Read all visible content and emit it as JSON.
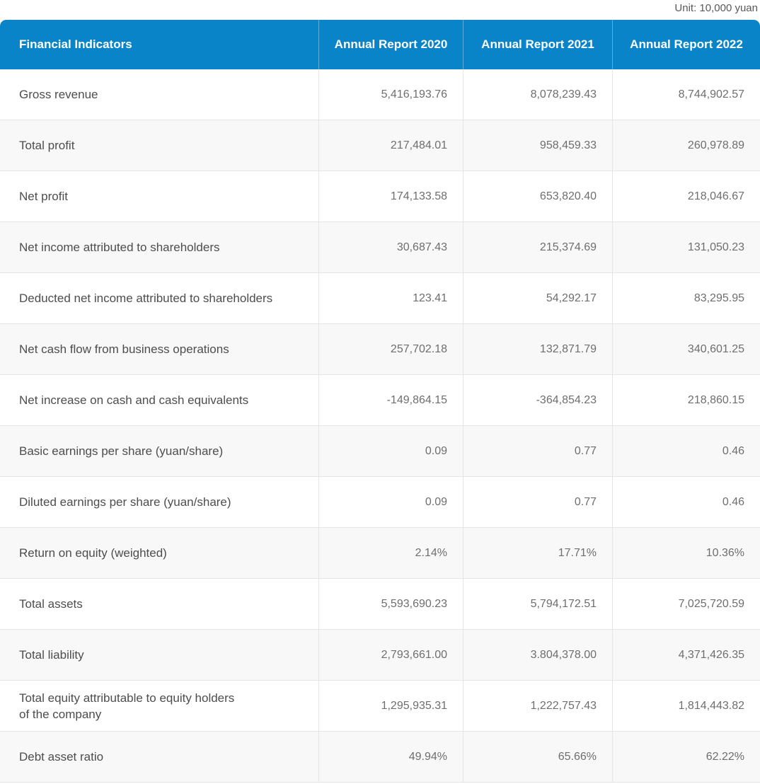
{
  "unit_label": "Unit: 10,000 yuan",
  "theme": {
    "header_bg": "#0984c9",
    "header_text": "#ffffff",
    "row_alt_bg": "#f8f8f8",
    "border": "#e5e5e5",
    "label_text": "#4d4d4d",
    "value_text": "#6e6e6e"
  },
  "chart_data": {
    "type": "table",
    "title": "Financial Indicators",
    "unit": "Unit: 10,000 yuan",
    "columns": [
      "Financial Indicators",
      "Annual Report 2020",
      "Annual Report 2021",
      "Annual Report 2022"
    ],
    "rows": [
      {
        "label": "Gross revenue",
        "values": [
          "5,416,193.76",
          "8,078,239.43",
          "8,744,902.57"
        ]
      },
      {
        "label": "Total profit",
        "values": [
          "217,484.01",
          "958,459.33",
          "260,978.89"
        ]
      },
      {
        "label": "Net profit",
        "values": [
          "174,133.58",
          "653,820.40",
          "218,046.67"
        ]
      },
      {
        "label": "Net income attributed to shareholders",
        "values": [
          "30,687.43",
          "215,374.69",
          "131,050.23"
        ]
      },
      {
        "label": "Deducted net income attributed to shareholders",
        "values": [
          "123.41",
          "54,292.17",
          "83,295.95"
        ]
      },
      {
        "label": "Net cash flow from business operations",
        "values": [
          "257,702.18",
          "132,871.79",
          "340,601.25"
        ]
      },
      {
        "label": "Net increase on cash and cash equivalents",
        "values": [
          "-149,864.15",
          "-364,854.23",
          "218,860.15"
        ]
      },
      {
        "label": "Basic earnings per share (yuan/share)",
        "values": [
          "0.09",
          "0.77",
          "0.46"
        ]
      },
      {
        "label": "Diluted earnings per share (yuan/share)",
        "values": [
          "0.09",
          "0.77",
          "0.46"
        ]
      },
      {
        "label": "Return on equity (weighted)",
        "values": [
          "2.14%",
          "17.71%",
          "10.36%"
        ]
      },
      {
        "label": "Total assets",
        "values": [
          "5,593,690.23",
          "5,794,172.51",
          "7,025,720.59"
        ]
      },
      {
        "label": "Total liability",
        "values": [
          "2,793,661.00",
          "3.804,378.00",
          "4,371,426.35"
        ]
      },
      {
        "label": "Total equity attributable to equity holders\nof the company",
        "values": [
          "1,295,935.31",
          "1,222,757.43",
          "1,814,443.82"
        ]
      },
      {
        "label": "Debt asset ratio",
        "values": [
          "49.94%",
          "65.66%",
          "62.22%"
        ]
      }
    ]
  }
}
